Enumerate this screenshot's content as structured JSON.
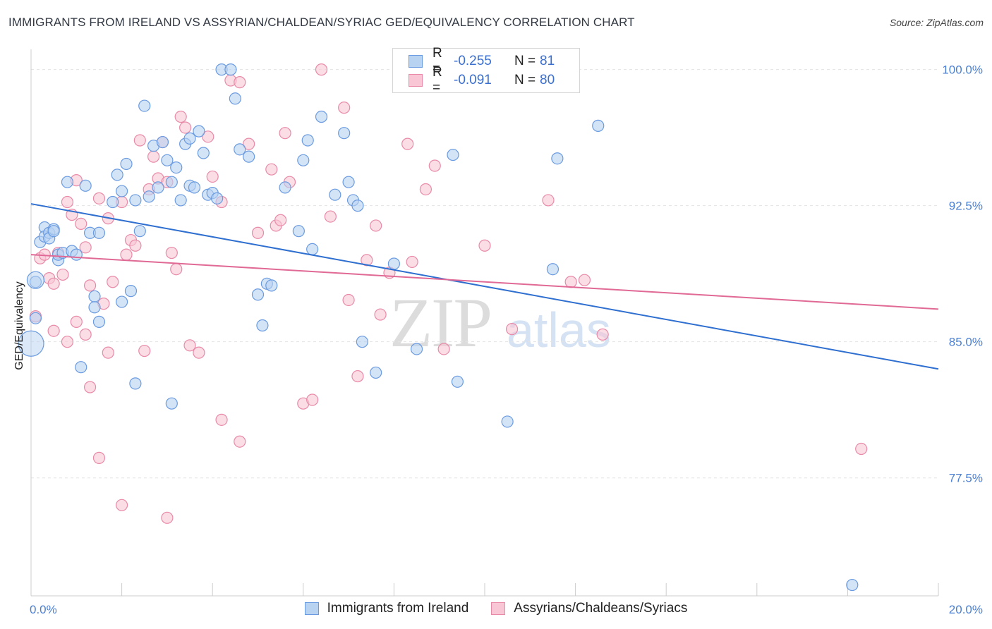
{
  "header": {
    "title": "IMMIGRANTS FROM IRELAND VS ASSYRIAN/CHALDEAN/SYRIAC GED/EQUIVALENCY CORRELATION CHART",
    "source": "Source: ZipAtlas.com"
  },
  "watermark": {
    "zip": "ZIP",
    "atlas": "atlas"
  },
  "legend": {
    "r_label": "R =",
    "n_label": "N =",
    "series1": {
      "r": "-0.255",
      "n": "81"
    },
    "series2": {
      "r": "-0.091",
      "n": "80"
    }
  },
  "colors": {
    "series1_fill": "#b8d2f2",
    "series1_stroke": "#6a9be0",
    "series1_line": "#2f6fd0",
    "series2_fill": "#f8c6d5",
    "series2_stroke": "#e88aa8",
    "series2_line": "#e06a95",
    "tick_text": "#4a7fd4",
    "grid": "#e3e3e3"
  },
  "chart_data": {
    "type": "scatter",
    "title": "IMMIGRANTS FROM IRELAND VS ASSYRIAN/CHALDEAN/SYRIAC GED/EQUIVALENCY CORRELATION CHART",
    "xlabel": "",
    "ylabel": "GED/Equivalency",
    "xlim": [
      0,
      20
    ],
    "ylim": [
      71,
      101.5
    ],
    "x_tick_labels": [
      "0.0%",
      "20.0%"
    ],
    "y_ticks": [
      77.5,
      85.0,
      92.5,
      100.0
    ],
    "y_tick_labels": [
      "77.5%",
      "85.0%",
      "92.5%",
      "100.0%"
    ],
    "grid": true,
    "legend_position": "top-center",
    "series": [
      {
        "name": "Immigrants from Ireland",
        "trend": {
          "x": [
            0,
            20
          ],
          "y": [
            92.6,
            83.5
          ]
        },
        "points": [
          [
            0.1,
            88.3
          ],
          [
            0.1,
            86.3
          ],
          [
            0.2,
            90.5
          ],
          [
            0.3,
            91.3
          ],
          [
            0.3,
            90.8
          ],
          [
            0.4,
            91.0
          ],
          [
            0.4,
            90.7
          ],
          [
            0.5,
            91.2
          ],
          [
            0.5,
            91.1
          ],
          [
            0.6,
            89.5
          ],
          [
            0.6,
            89.8
          ],
          [
            0.7,
            89.9
          ],
          [
            0.8,
            93.8
          ],
          [
            0.9,
            90.0
          ],
          [
            1.0,
            89.8
          ],
          [
            1.2,
            93.6
          ],
          [
            1.3,
            91.0
          ],
          [
            1.4,
            87.5
          ],
          [
            1.4,
            86.9
          ],
          [
            1.5,
            91.0
          ],
          [
            1.5,
            86.1
          ],
          [
            1.8,
            92.7
          ],
          [
            1.9,
            94.2
          ],
          [
            2.0,
            93.3
          ],
          [
            2.1,
            94.8
          ],
          [
            2.0,
            87.2
          ],
          [
            2.2,
            87.8
          ],
          [
            2.3,
            92.8
          ],
          [
            2.4,
            91.1
          ],
          [
            2.5,
            98.0
          ],
          [
            2.6,
            93.0
          ],
          [
            2.7,
            95.8
          ],
          [
            2.8,
            93.5
          ],
          [
            2.9,
            96.0
          ],
          [
            3.0,
            95.0
          ],
          [
            3.1,
            93.8
          ],
          [
            3.2,
            94.6
          ],
          [
            3.3,
            92.8
          ],
          [
            3.4,
            95.9
          ],
          [
            3.5,
            96.2
          ],
          [
            3.5,
            93.6
          ],
          [
            3.6,
            93.5
          ],
          [
            3.7,
            96.6
          ],
          [
            3.8,
            95.4
          ],
          [
            3.9,
            93.1
          ],
          [
            4.0,
            93.2
          ],
          [
            4.1,
            92.9
          ],
          [
            4.2,
            100.0
          ],
          [
            4.4,
            100.0
          ],
          [
            4.5,
            98.4
          ],
          [
            4.6,
            95.6
          ],
          [
            4.8,
            95.2
          ],
          [
            5.0,
            87.6
          ],
          [
            5.1,
            85.9
          ],
          [
            5.2,
            88.2
          ],
          [
            5.3,
            88.1
          ],
          [
            5.6,
            93.5
          ],
          [
            5.9,
            91.1
          ],
          [
            6.0,
            95.0
          ],
          [
            6.1,
            96.1
          ],
          [
            6.2,
            90.1
          ],
          [
            6.4,
            97.4
          ],
          [
            6.7,
            93.1
          ],
          [
            6.9,
            96.5
          ],
          [
            7.0,
            93.8
          ],
          [
            7.1,
            92.8
          ],
          [
            7.2,
            92.5
          ],
          [
            7.3,
            85.0
          ],
          [
            7.6,
            83.3
          ],
          [
            8.0,
            89.3
          ],
          [
            8.5,
            84.6
          ],
          [
            9.3,
            95.3
          ],
          [
            9.4,
            82.8
          ],
          [
            10.5,
            80.6
          ],
          [
            11.5,
            89.0
          ],
          [
            11.6,
            95.1
          ],
          [
            12.5,
            96.9
          ],
          [
            1.1,
            83.6
          ],
          [
            2.3,
            82.7
          ],
          [
            3.1,
            81.6
          ],
          [
            18.1,
            71.6
          ]
        ]
      },
      {
        "name": "Assyrians/Chaldeans/Syriacs",
        "trend": {
          "x": [
            0,
            20
          ],
          "y": [
            89.8,
            86.8
          ]
        },
        "points": [
          [
            0.1,
            86.4
          ],
          [
            0.2,
            89.6
          ],
          [
            0.3,
            89.8
          ],
          [
            0.4,
            88.5
          ],
          [
            0.5,
            88.2
          ],
          [
            0.5,
            85.6
          ],
          [
            0.6,
            89.9
          ],
          [
            0.7,
            88.7
          ],
          [
            0.8,
            92.7
          ],
          [
            0.8,
            85.0
          ],
          [
            0.9,
            92.0
          ],
          [
            1.0,
            86.1
          ],
          [
            1.0,
            93.9
          ],
          [
            1.1,
            91.5
          ],
          [
            1.2,
            90.2
          ],
          [
            1.2,
            85.4
          ],
          [
            1.3,
            88.1
          ],
          [
            1.5,
            92.9
          ],
          [
            1.6,
            87.1
          ],
          [
            1.7,
            91.8
          ],
          [
            1.8,
            88.3
          ],
          [
            2.0,
            92.7
          ],
          [
            2.1,
            89.8
          ],
          [
            2.2,
            90.6
          ],
          [
            2.3,
            90.3
          ],
          [
            2.4,
            96.1
          ],
          [
            2.5,
            84.5
          ],
          [
            2.6,
            93.4
          ],
          [
            2.7,
            95.2
          ],
          [
            2.8,
            94.0
          ],
          [
            2.9,
            96.0
          ],
          [
            3.0,
            93.8
          ],
          [
            3.1,
            89.9
          ],
          [
            3.2,
            89.0
          ],
          [
            3.3,
            97.4
          ],
          [
            3.4,
            96.8
          ],
          [
            3.5,
            84.8
          ],
          [
            3.7,
            84.4
          ],
          [
            3.9,
            96.3
          ],
          [
            4.0,
            94.1
          ],
          [
            4.2,
            92.7
          ],
          [
            4.4,
            99.4
          ],
          [
            4.6,
            99.3
          ],
          [
            4.8,
            95.9
          ],
          [
            5.0,
            91.0
          ],
          [
            5.3,
            94.5
          ],
          [
            5.4,
            91.4
          ],
          [
            5.5,
            91.7
          ],
          [
            5.6,
            96.5
          ],
          [
            5.7,
            93.8
          ],
          [
            6.0,
            81.6
          ],
          [
            6.2,
            81.8
          ],
          [
            6.4,
            100.0
          ],
          [
            6.6,
            91.9
          ],
          [
            6.9,
            97.9
          ],
          [
            7.0,
            87.3
          ],
          [
            7.2,
            83.1
          ],
          [
            7.4,
            89.5
          ],
          [
            7.6,
            91.4
          ],
          [
            7.7,
            86.5
          ],
          [
            7.9,
            88.8
          ],
          [
            8.3,
            95.9
          ],
          [
            8.4,
            89.4
          ],
          [
            8.7,
            93.4
          ],
          [
            8.9,
            94.7
          ],
          [
            9.1,
            84.6
          ],
          [
            10.0,
            90.3
          ],
          [
            10.6,
            85.7
          ],
          [
            11.4,
            92.8
          ],
          [
            11.9,
            88.3
          ],
          [
            12.2,
            88.4
          ],
          [
            12.6,
            85.4
          ],
          [
            18.3,
            79.1
          ],
          [
            1.3,
            82.5
          ],
          [
            1.5,
            78.6
          ],
          [
            1.7,
            84.4
          ],
          [
            2.0,
            76.0
          ],
          [
            3.0,
            75.3
          ],
          [
            4.2,
            80.7
          ],
          [
            4.6,
            79.5
          ]
        ]
      }
    ]
  },
  "bottom_legend": {
    "series1_label": "Immigrants from Ireland",
    "series2_label": "Assyrians/Chaldeans/Syriacs"
  }
}
